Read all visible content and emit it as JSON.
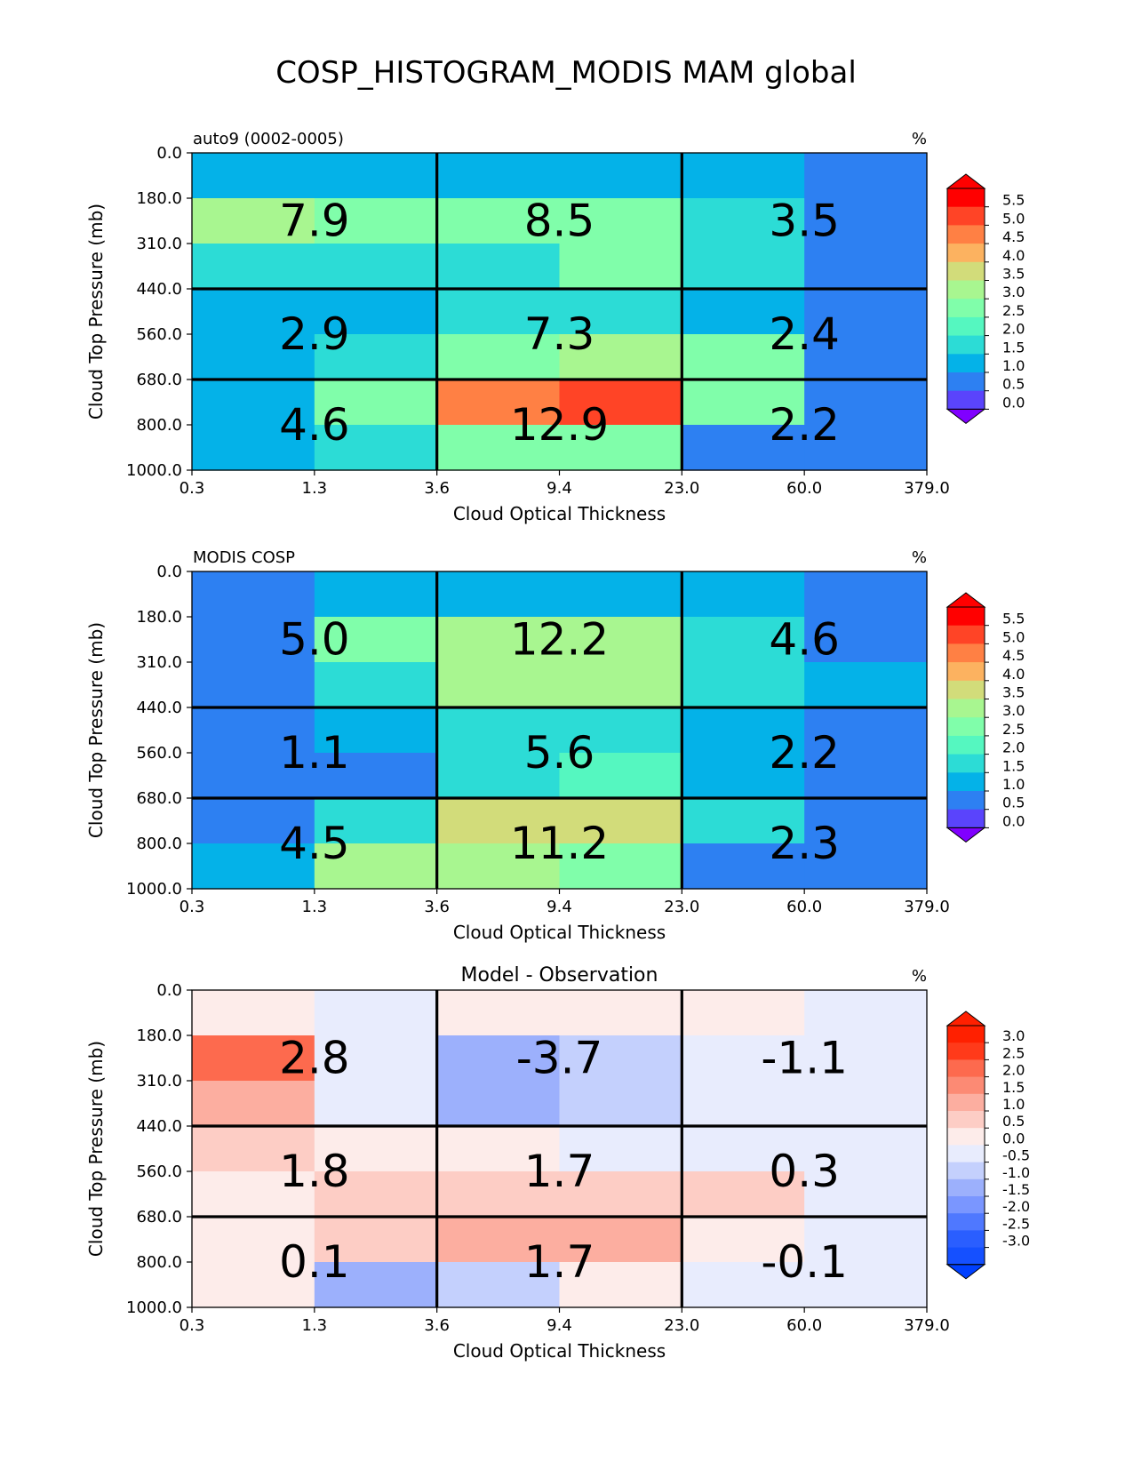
{
  "suptitle": "COSP_HISTOGRAM_MODIS MAM global",
  "tau_tick_labels": [
    "0.3",
    "1.3",
    "3.6",
    "9.4",
    "23.0",
    "60.0",
    "379.0"
  ],
  "pressure_tick_labels": [
    "0.0",
    "180.0",
    "310.0",
    "440.0",
    "560.0",
    "680.0",
    "800.0",
    "1000.0"
  ],
  "chart_data": [
    {
      "type": "heatmap",
      "left_title": "auto9 (0002-0005)",
      "center_title": "",
      "units": "%",
      "xlabel": "Cloud Optical Thickness",
      "ylabel": "Cloud Top Pressure (mb)",
      "grid": [
        [
          0.8,
          0.8,
          0.8,
          0.8,
          0.8,
          0.4
        ],
        [
          2.7,
          2.1,
          2.1,
          2.1,
          1.4,
          0.4
        ],
        [
          1.3,
          1.3,
          1.3,
          2.0,
          1.4,
          0.4
        ],
        [
          0.8,
          0.8,
          1.3,
          1.3,
          0.8,
          0.4
        ],
        [
          0.8,
          1.3,
          2.3,
          2.7,
          2.1,
          0.4
        ],
        [
          0.8,
          2.0,
          4.3,
          4.9,
          2.1,
          0.4
        ],
        [
          0.8,
          1.3,
          2.3,
          2.0,
          0.4,
          0.4
        ]
      ],
      "block_labels": [
        [
          "7.9",
          "8.5",
          "3.5"
        ],
        [
          "2.9",
          "7.3",
          "2.4"
        ],
        [
          "4.6",
          "12.9",
          "2.2"
        ]
      ],
      "colorbar": {
        "levels": [
          -0.5,
          0.0,
          0.5,
          1.0,
          1.5,
          2.0,
          2.5,
          3.0,
          3.5,
          4.0,
          4.5,
          5.0,
          5.5,
          6.0
        ],
        "tick_labels": [
          "5.5",
          "5.0",
          "4.5",
          "4.0",
          "3.5",
          "3.0",
          "2.5",
          "2.0",
          "1.5",
          "1.0",
          "0.5",
          "0.0"
        ],
        "under_color": "#8000ff",
        "over_color": "#ff0000",
        "colors": [
          "#5a44fc",
          "#2d80f2",
          "#04b2e8",
          "#2cdcd6",
          "#55f7c0",
          "#80feaa",
          "#a8f690",
          "#d2dc7a",
          "#fcb260",
          "#ff8044",
          "#ff4426",
          "#ff0000"
        ]
      }
    },
    {
      "type": "heatmap",
      "left_title": "MODIS COSP",
      "center_title": "",
      "units": "%",
      "xlabel": "Cloud Optical Thickness",
      "ylabel": "Cloud Top Pressure (mb)",
      "grid": [
        [
          0.4,
          0.8,
          0.8,
          0.8,
          0.8,
          0.4
        ],
        [
          0.4,
          2.1,
          2.7,
          2.7,
          1.4,
          0.4
        ],
        [
          0.4,
          1.3,
          2.7,
          2.7,
          1.4,
          0.8
        ],
        [
          0.4,
          0.8,
          1.3,
          1.3,
          0.8,
          0.4
        ],
        [
          0.4,
          0.4,
          1.3,
          1.7,
          0.8,
          0.4
        ],
        [
          0.4,
          1.3,
          3.2,
          3.2,
          1.4,
          0.4
        ],
        [
          0.8,
          2.7,
          2.7,
          2.0,
          0.4,
          0.4
        ]
      ],
      "block_labels": [
        [
          "5.0",
          "12.2",
          "4.6"
        ],
        [
          "1.1",
          "5.6",
          "2.2"
        ],
        [
          "4.5",
          "11.2",
          "2.3"
        ]
      ],
      "colorbar": {
        "levels": [
          -0.5,
          0.0,
          0.5,
          1.0,
          1.5,
          2.0,
          2.5,
          3.0,
          3.5,
          4.0,
          4.5,
          5.0,
          5.5,
          6.0
        ],
        "tick_labels": [
          "5.5",
          "5.0",
          "4.5",
          "4.0",
          "3.5",
          "3.0",
          "2.5",
          "2.0",
          "1.5",
          "1.0",
          "0.5",
          "0.0"
        ],
        "under_color": "#8000ff",
        "over_color": "#ff0000",
        "colors": [
          "#5a44fc",
          "#2d80f2",
          "#04b2e8",
          "#2cdcd6",
          "#55f7c0",
          "#80feaa",
          "#a8f690",
          "#d2dc7a",
          "#fcb260",
          "#ff8044",
          "#ff4426",
          "#ff0000"
        ]
      }
    },
    {
      "type": "heatmap",
      "left_title": "",
      "center_title": "Model - Observation",
      "units": "%",
      "xlabel": "Cloud Optical Thickness",
      "ylabel": "Cloud Top Pressure (mb)",
      "grid": [
        [
          0.1,
          -0.1,
          0.1,
          0.1,
          0.1,
          -0.1
        ],
        [
          2.2,
          -0.1,
          -1.2,
          -0.7,
          -0.1,
          -0.1
        ],
        [
          1.3,
          -0.1,
          -1.2,
          -0.7,
          -0.1,
          -0.1
        ],
        [
          0.7,
          0.1,
          0.1,
          -0.1,
          -0.1,
          -0.1
        ],
        [
          0.1,
          0.7,
          0.7,
          0.7,
          0.7,
          -0.1
        ],
        [
          0.1,
          0.7,
          1.3,
          1.3,
          0.1,
          -0.1
        ],
        [
          0.1,
          -1.2,
          -0.7,
          0.1,
          -0.1,
          -0.1
        ]
      ],
      "block_labels": [
        [
          "2.8",
          "-3.7",
          "-1.1"
        ],
        [
          "1.8",
          "1.7",
          "0.3"
        ],
        [
          "0.1",
          "1.7",
          "-0.1"
        ]
      ],
      "colorbar": {
        "levels": [
          -3.25,
          -3.0,
          -2.5,
          -2.0,
          -1.5,
          -1.0,
          -0.5,
          0.0,
          0.5,
          1.0,
          1.5,
          2.0,
          2.5,
          3.0,
          3.25
        ],
        "tick_labels": [
          "3.0",
          "2.5",
          "2.0",
          "1.5",
          "1.0",
          "0.5",
          "0.0",
          "-0.5",
          "-1.0",
          "-1.5",
          "-2.0",
          "-2.5",
          "-3.0"
        ],
        "under_color": "#0040ff",
        "over_color": "#ff2000",
        "colors": [
          "#1550ff",
          "#2a5eff",
          "#4f78ff",
          "#7a96ff",
          "#9cb0fc",
          "#c4d0fd",
          "#e8ecfd",
          "#fdecea",
          "#fdcdc5",
          "#fcaea0",
          "#fc8a74",
          "#fd6a4e",
          "#ff3a1a",
          "#ff2000"
        ]
      }
    }
  ]
}
